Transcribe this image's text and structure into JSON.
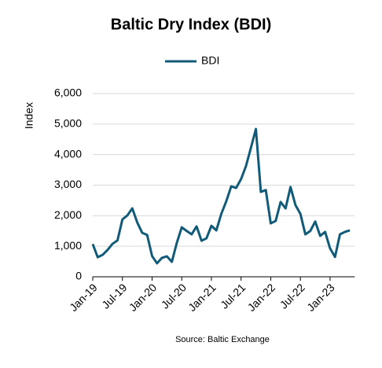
{
  "chart_data": {
    "type": "line",
    "title": "Baltic Dry Index (BDI)",
    "y_label": "Index",
    "source": "Source: Baltic Exchange",
    "categories": [
      "Jan-19",
      null,
      null,
      null,
      null,
      null,
      "Jul-19",
      null,
      null,
      null,
      null,
      null,
      "Jan-20",
      null,
      null,
      null,
      null,
      null,
      "Jul-20",
      null,
      null,
      null,
      null,
      null,
      "Jan-21",
      null,
      null,
      null,
      null,
      null,
      "Jul-21",
      null,
      null,
      null,
      null,
      null,
      "Jan-22",
      null,
      null,
      null,
      null,
      null,
      "Jul-22",
      null,
      null,
      null,
      null,
      null,
      "Jan-23",
      null,
      null,
      null,
      null
    ],
    "series": [
      {
        "name": "BDI",
        "color": "#125b78",
        "values": [
          1070,
          640,
          720,
          880,
          1080,
          1190,
          1880,
          2010,
          2240,
          1780,
          1440,
          1370,
          680,
          440,
          620,
          670,
          490,
          1110,
          1620,
          1500,
          1390,
          1650,
          1180,
          1260,
          1670,
          1520,
          2060,
          2470,
          2960,
          2910,
          3200,
          3630,
          4230,
          4840,
          2780,
          2840,
          1750,
          1830,
          2450,
          2240,
          2940,
          2350,
          2060,
          1390,
          1500,
          1810,
          1340,
          1470,
          930,
          650,
          1390,
          1470,
          1520
        ]
      }
    ],
    "ylim": [
      0,
      6000
    ],
    "yticks": [
      0,
      {
        "value": 1000,
        "label": "1,000"
      },
      {
        "value": 2000,
        "label": "2,000"
      },
      {
        "value": 3000,
        "label": "3,000"
      },
      {
        "value": 4000,
        "label": "4,000"
      },
      {
        "value": 5000,
        "label": "5,000"
      },
      {
        "value": 6000,
        "label": "6,000"
      }
    ],
    "grid": true
  }
}
